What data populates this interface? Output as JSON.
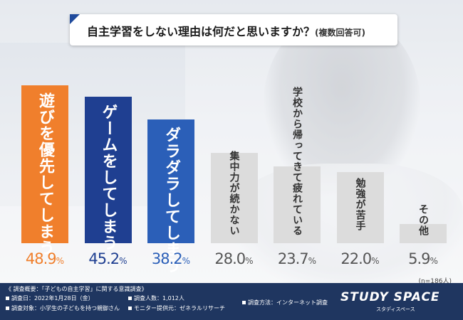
{
  "title": "自主学習をしない理由は何だと思いますか？",
  "title_note": "(複数回答可)",
  "sample_size": "(n=186人)",
  "chart_data": {
    "type": "bar",
    "title": "自主学習をしない理由は何だと思いますか？(複数回答可)",
    "unit": "%",
    "ylim": [
      0,
      50
    ],
    "categories": [
      "遊びを優先してしまう",
      "ゲームをしてしまう",
      "ダラダラしてしまう",
      "集中力が続かない",
      "学校から帰ってきて疲れている",
      "勉強が苦手",
      "その他"
    ],
    "values": [
      48.9,
      45.2,
      38.2,
      28.0,
      23.7,
      22.0,
      5.9
    ],
    "value_labels": [
      "48.9",
      "45.2",
      "38.2",
      "28.0",
      "23.7",
      "22.0",
      "5.9"
    ],
    "bar_colors": [
      "#f07f2c",
      "#1f3f91",
      "#2b5fb8",
      "#dcdcdc",
      "#dcdcdc",
      "#dcdcdc",
      "#dcdcdc"
    ],
    "label_colors": [
      "#ffffff",
      "#ffffff",
      "#ffffff",
      "#333333",
      "#333333",
      "#333333",
      "#333333"
    ],
    "value_colors": [
      "#f07f2c",
      "#1f3f91",
      "#2b5fb8",
      "#555555",
      "#555555",
      "#555555",
      "#555555"
    ],
    "grid": false,
    "legend": "none"
  },
  "footer": {
    "overview": "《 調査概要：「子どもの自主学習」に関する意識調査》",
    "date": "調査日：2022年1月28日（金）",
    "count": "調査人数：1,012人",
    "method": "調査方法：インターネット調査",
    "target": "調査対象：小学生の子どもを持つ親御さん",
    "provider": "モニター提供元：ゼネラルリサーチ"
  },
  "brand": {
    "name": "STUDY SPACE",
    "sub": "スタディスペース"
  },
  "colors": {
    "footer_bg": "#1f3660",
    "accent": "#1f4a9c"
  }
}
